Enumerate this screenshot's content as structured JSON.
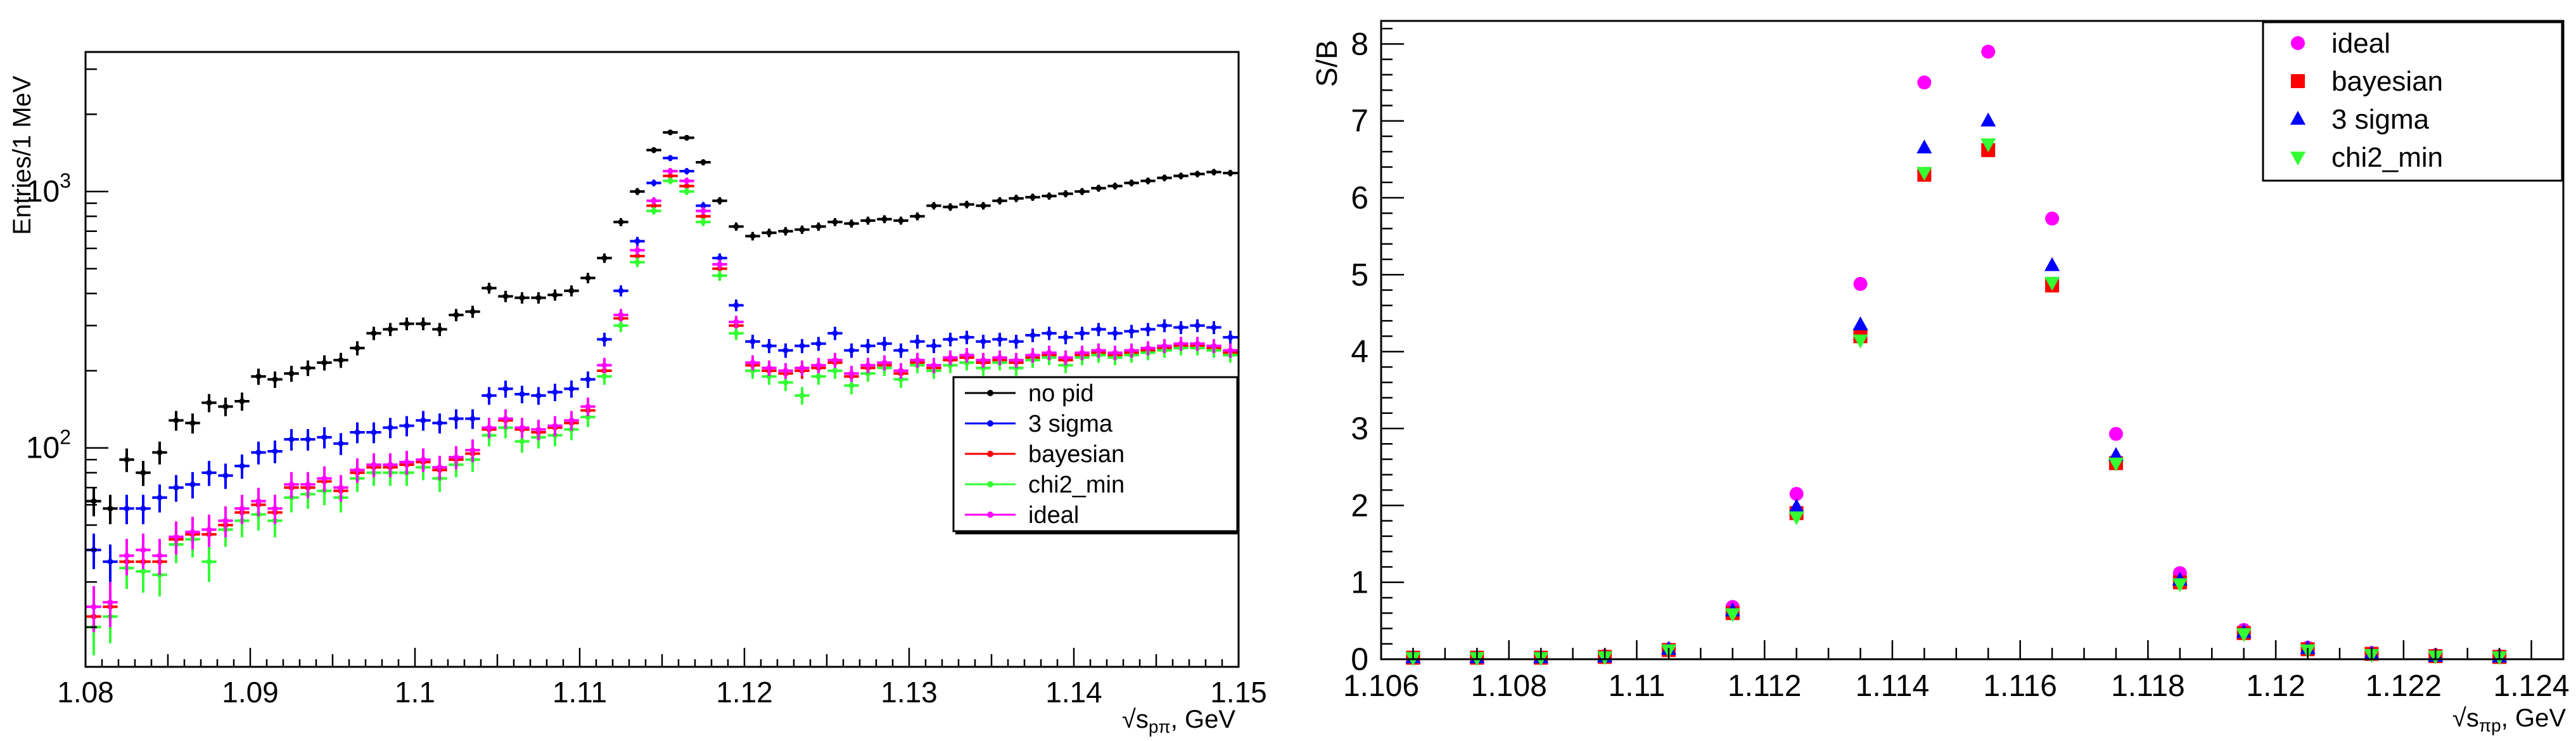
{
  "chart_data": [
    {
      "type": "scatter",
      "title": "",
      "xlabel": "√s_pπ, GeV",
      "xlabel_main": "√s",
      "xlabel_sub": "pπ",
      "xlabel_unit": ", GeV",
      "ylabel": "Entries/1 MeV",
      "yscale": "log",
      "xlim": [
        1.08,
        1.15
      ],
      "ylim": [
        14,
        3500
      ],
      "x_ticks": [
        1.08,
        1.09,
        1.1,
        1.11,
        1.12,
        1.13,
        1.14,
        1.15
      ],
      "x_tick_labels": [
        "1.08",
        "1.09",
        "1.1",
        "1.11",
        "1.12",
        "1.13",
        "1.14",
        "1.15"
      ],
      "y_ticks": [
        100,
        1000
      ],
      "y_tick_base": "10",
      "y_tick_exps": [
        "2",
        "3"
      ],
      "legend_position": "center-right",
      "series": [
        {
          "name": "no pid",
          "color": "#000000",
          "x": [
            1.0805,
            1.0815,
            1.0825,
            1.0835,
            1.0845,
            1.0855,
            1.0865,
            1.0875,
            1.0885,
            1.0895,
            1.0905,
            1.0915,
            1.0925,
            1.0935,
            1.0945,
            1.0955,
            1.0965,
            1.0975,
            1.0985,
            1.0995,
            1.1005,
            1.1015,
            1.1025,
            1.1035,
            1.1045,
            1.1055,
            1.1065,
            1.1075,
            1.1085,
            1.1095,
            1.1105,
            1.1115,
            1.1125,
            1.1135,
            1.1145,
            1.1155,
            1.1165,
            1.1175,
            1.1185,
            1.1195,
            1.1205,
            1.1215,
            1.1225,
            1.1235,
            1.1245,
            1.1255,
            1.1265,
            1.1275,
            1.1285,
            1.1295,
            1.1305,
            1.1315,
            1.1325,
            1.1335,
            1.1345,
            1.1355,
            1.1365,
            1.1375,
            1.1385,
            1.1395,
            1.1405,
            1.1415,
            1.1425,
            1.1435,
            1.1445,
            1.1455,
            1.1465,
            1.1475,
            1.1485,
            1.1495
          ],
          "y": [
            62,
            58,
            90,
            80,
            96,
            128,
            125,
            150,
            145,
            152,
            190,
            185,
            195,
            205,
            215,
            220,
            245,
            280,
            290,
            305,
            305,
            290,
            330,
            340,
            420,
            390,
            385,
            385,
            395,
            410,
            460,
            550,
            760,
            1000,
            1450,
            1700,
            1620,
            1300,
            920,
            730,
            670,
            690,
            700,
            710,
            730,
            760,
            750,
            770,
            780,
            770,
            800,
            880,
            870,
            890,
            880,
            920,
            940,
            950,
            960,
            980,
            1000,
            1030,
            1050,
            1080,
            1100,
            1130,
            1150,
            1170,
            1190,
            1180
          ]
        },
        {
          "name": "3 sigma",
          "color": "#0000ff",
          "x": [
            1.0805,
            1.0815,
            1.0825,
            1.0835,
            1.0845,
            1.0855,
            1.0865,
            1.0875,
            1.0885,
            1.0895,
            1.0905,
            1.0915,
            1.0925,
            1.0935,
            1.0945,
            1.0955,
            1.0965,
            1.0975,
            1.0985,
            1.0995,
            1.1005,
            1.1015,
            1.1025,
            1.1035,
            1.1045,
            1.1055,
            1.1065,
            1.1075,
            1.1085,
            1.1095,
            1.1105,
            1.1115,
            1.1125,
            1.1135,
            1.1145,
            1.1155,
            1.1165,
            1.1175,
            1.1185,
            1.1195,
            1.1205,
            1.1215,
            1.1225,
            1.1235,
            1.1245,
            1.1255,
            1.1265,
            1.1275,
            1.1285,
            1.1295,
            1.1305,
            1.1315,
            1.1325,
            1.1335,
            1.1345,
            1.1355,
            1.1365,
            1.1375,
            1.1385,
            1.1395,
            1.1405,
            1.1415,
            1.1425,
            1.1435,
            1.1445,
            1.1455,
            1.1465,
            1.1475,
            1.1485,
            1.1495
          ],
          "y": [
            40,
            36,
            58,
            58,
            64,
            70,
            72,
            80,
            78,
            85,
            96,
            97,
            108,
            108,
            110,
            104,
            115,
            115,
            120,
            122,
            128,
            125,
            130,
            130,
            160,
            170,
            162,
            160,
            165,
            170,
            185,
            265,
            410,
            640,
            1080,
            1350,
            1200,
            880,
            550,
            360,
            260,
            250,
            240,
            250,
            255,
            280,
            240,
            250,
            255,
            240,
            260,
            250,
            265,
            270,
            260,
            265,
            260,
            275,
            280,
            270,
            280,
            290,
            280,
            285,
            290,
            300,
            295,
            300,
            295,
            270
          ]
        },
        {
          "name": "bayesian",
          "color": "#ff0000",
          "x": [
            1.0805,
            1.0815,
            1.0825,
            1.0835,
            1.0845,
            1.0855,
            1.0865,
            1.0875,
            1.0885,
            1.0895,
            1.0905,
            1.0915,
            1.0925,
            1.0935,
            1.0945,
            1.0955,
            1.0965,
            1.0975,
            1.0985,
            1.0995,
            1.1005,
            1.1015,
            1.1025,
            1.1035,
            1.1045,
            1.1055,
            1.1065,
            1.1075,
            1.1085,
            1.1095,
            1.1105,
            1.1115,
            1.1125,
            1.1135,
            1.1145,
            1.1155,
            1.1165,
            1.1175,
            1.1185,
            1.1195,
            1.1205,
            1.1215,
            1.1225,
            1.1235,
            1.1245,
            1.1255,
            1.1265,
            1.1275,
            1.1285,
            1.1295,
            1.1305,
            1.1315,
            1.1325,
            1.1335,
            1.1345,
            1.1355,
            1.1365,
            1.1375,
            1.1385,
            1.1395,
            1.1405,
            1.1415,
            1.1425,
            1.1435,
            1.1445,
            1.1455,
            1.1465,
            1.1475,
            1.1485,
            1.1495
          ],
          "y": [
            22,
            24,
            36,
            36,
            36,
            44,
            46,
            46,
            50,
            56,
            60,
            56,
            70,
            70,
            74,
            68,
            80,
            84,
            84,
            86,
            88,
            82,
            90,
            95,
            118,
            128,
            118,
            115,
            120,
            125,
            140,
            200,
            320,
            560,
            880,
            1150,
            1050,
            800,
            500,
            300,
            210,
            200,
            195,
            200,
            205,
            215,
            190,
            205,
            210,
            195,
            215,
            205,
            220,
            225,
            215,
            220,
            215,
            225,
            230,
            220,
            230,
            235,
            230,
            235,
            240,
            245,
            250,
            250,
            245,
            235
          ]
        },
        {
          "name": "chi2_min",
          "color": "#33ff33",
          "x": [
            1.0805,
            1.0815,
            1.0825,
            1.0835,
            1.0845,
            1.0855,
            1.0865,
            1.0875,
            1.0885,
            1.0895,
            1.0905,
            1.0915,
            1.0925,
            1.0935,
            1.0945,
            1.0955,
            1.0965,
            1.0975,
            1.0985,
            1.0995,
            1.1005,
            1.1015,
            1.1025,
            1.1035,
            1.1045,
            1.1055,
            1.1065,
            1.1075,
            1.1085,
            1.1095,
            1.1105,
            1.1115,
            1.1125,
            1.1135,
            1.1145,
            1.1155,
            1.1165,
            1.1175,
            1.1185,
            1.1195,
            1.1205,
            1.1215,
            1.1225,
            1.1235,
            1.1245,
            1.1255,
            1.1265,
            1.1275,
            1.1285,
            1.1295,
            1.1305,
            1.1315,
            1.1325,
            1.1335,
            1.1345,
            1.1355,
            1.1365,
            1.1375,
            1.1385,
            1.1395,
            1.1405,
            1.1415,
            1.1425,
            1.1435,
            1.1445,
            1.1455,
            1.1465,
            1.1475,
            1.1485,
            1.1495
          ],
          "y": [
            20,
            22,
            34,
            33,
            32,
            42,
            44,
            36,
            48,
            52,
            55,
            52,
            64,
            66,
            68,
            64,
            76,
            80,
            80,
            80,
            84,
            76,
            86,
            90,
            112,
            120,
            106,
            110,
            112,
            118,
            132,
            190,
            300,
            530,
            840,
            1100,
            1000,
            760,
            470,
            280,
            200,
            190,
            180,
            160,
            190,
            200,
            175,
            195,
            205,
            185,
            210,
            200,
            210,
            215,
            205,
            215,
            205,
            220,
            225,
            210,
            225,
            230,
            225,
            230,
            235,
            240,
            245,
            245,
            240,
            230
          ]
        },
        {
          "name": "ideal",
          "color": "#ff00ff",
          "x": [
            1.0805,
            1.0815,
            1.0825,
            1.0835,
            1.0845,
            1.0855,
            1.0865,
            1.0875,
            1.0885,
            1.0895,
            1.0905,
            1.0915,
            1.0925,
            1.0935,
            1.0945,
            1.0955,
            1.0965,
            1.0975,
            1.0985,
            1.0995,
            1.1005,
            1.1015,
            1.1025,
            1.1035,
            1.1045,
            1.1055,
            1.1065,
            1.1075,
            1.1085,
            1.1095,
            1.1105,
            1.1115,
            1.1125,
            1.1135,
            1.1145,
            1.1155,
            1.1165,
            1.1175,
            1.1185,
            1.1195,
            1.1205,
            1.1215,
            1.1225,
            1.1235,
            1.1245,
            1.1255,
            1.1265,
            1.1275,
            1.1285,
            1.1295,
            1.1305,
            1.1315,
            1.1325,
            1.1335,
            1.1345,
            1.1355,
            1.1365,
            1.1375,
            1.1385,
            1.1395,
            1.1405,
            1.1415,
            1.1425,
            1.1435,
            1.1445,
            1.1455,
            1.1465,
            1.1475,
            1.1485,
            1.1495
          ],
          "y": [
            24,
            25,
            38,
            40,
            38,
            45,
            47,
            48,
            52,
            58,
            62,
            58,
            72,
            72,
            76,
            70,
            82,
            86,
            86,
            88,
            90,
            84,
            92,
            98,
            120,
            130,
            120,
            118,
            122,
            128,
            145,
            210,
            330,
            590,
            920,
            1200,
            1100,
            840,
            520,
            310,
            215,
            205,
            200,
            205,
            210,
            220,
            195,
            210,
            215,
            200,
            220,
            210,
            225,
            230,
            220,
            225,
            220,
            230,
            235,
            225,
            235,
            240,
            235,
            240,
            245,
            250,
            255,
            255,
            250,
            240
          ]
        }
      ]
    },
    {
      "type": "scatter",
      "title": "",
      "xlabel": "√s_πp, GeV",
      "xlabel_main": "√s",
      "xlabel_sub": "πp",
      "xlabel_unit": ", GeV",
      "ylabel": "S/B",
      "yscale": "linear",
      "xlim": [
        1.106,
        1.1245
      ],
      "ylim": [
        0,
        8.3
      ],
      "x_ticks": [
        1.106,
        1.108,
        1.11,
        1.112,
        1.114,
        1.116,
        1.118,
        1.12,
        1.122,
        1.124
      ],
      "x_tick_labels": [
        "1.106",
        "1.108",
        "1.11",
        "1.112",
        "1.114",
        "1.116",
        "1.118",
        "1.12",
        "1.122",
        "1.124"
      ],
      "y_ticks": [
        0,
        1,
        2,
        3,
        4,
        5,
        6,
        7,
        8
      ],
      "y_tick_labels": [
        "0",
        "1",
        "2",
        "3",
        "4",
        "5",
        "6",
        "7",
        "8"
      ],
      "legend_position": "top-right",
      "series": [
        {
          "name": "ideal",
          "color": "#ff00ff",
          "marker": "circle",
          "x": [
            1.1065,
            1.1075,
            1.1085,
            1.1095,
            1.1105,
            1.1115,
            1.1125,
            1.1135,
            1.1145,
            1.1155,
            1.1165,
            1.1175,
            1.1185,
            1.1195,
            1.1205,
            1.1215,
            1.1225,
            1.1235
          ],
          "y": [
            0.02,
            0.02,
            0.02,
            0.04,
            0.13,
            0.68,
            2.15,
            4.88,
            7.5,
            7.9,
            5.73,
            2.93,
            1.12,
            0.38,
            0.15,
            0.08,
            0.05,
            0.04
          ]
        },
        {
          "name": "bayesian",
          "color": "#ff0000",
          "marker": "square",
          "x": [
            1.1065,
            1.1075,
            1.1085,
            1.1095,
            1.1105,
            1.1115,
            1.1125,
            1.1135,
            1.1145,
            1.1155,
            1.1165,
            1.1175,
            1.1185,
            1.1195,
            1.1205,
            1.1215,
            1.1225,
            1.1235
          ],
          "y": [
            0.02,
            0.02,
            0.02,
            0.03,
            0.12,
            0.6,
            1.9,
            4.2,
            6.3,
            6.62,
            4.86,
            2.55,
            1.0,
            0.34,
            0.13,
            0.07,
            0.04,
            0.03
          ]
        },
        {
          "name": "3 sigma",
          "color": "#0000ff",
          "marker": "triangle-up",
          "x": [
            1.1065,
            1.1075,
            1.1085,
            1.1095,
            1.1105,
            1.1115,
            1.1125,
            1.1135,
            1.1145,
            1.1155,
            1.1165,
            1.1175,
            1.1185,
            1.1195,
            1.1205,
            1.1215,
            1.1225,
            1.1235
          ],
          "y": [
            0.02,
            0.02,
            0.02,
            0.03,
            0.13,
            0.63,
            1.98,
            4.35,
            6.65,
            7.0,
            5.12,
            2.65,
            1.03,
            0.35,
            0.14,
            0.07,
            0.04,
            0.03
          ]
        },
        {
          "name": "chi2_min",
          "color": "#33ff33",
          "marker": "triangle-down",
          "x": [
            1.1065,
            1.1075,
            1.1085,
            1.1095,
            1.1105,
            1.1115,
            1.1125,
            1.1135,
            1.1145,
            1.1155,
            1.1165,
            1.1175,
            1.1185,
            1.1195,
            1.1205,
            1.1215,
            1.1225,
            1.1235
          ],
          "y": [
            0.02,
            0.02,
            0.02,
            0.03,
            0.12,
            0.59,
            1.85,
            4.15,
            6.33,
            6.7,
            4.9,
            2.55,
            0.98,
            0.33,
            0.12,
            0.06,
            0.04,
            0.03
          ]
        }
      ]
    }
  ]
}
